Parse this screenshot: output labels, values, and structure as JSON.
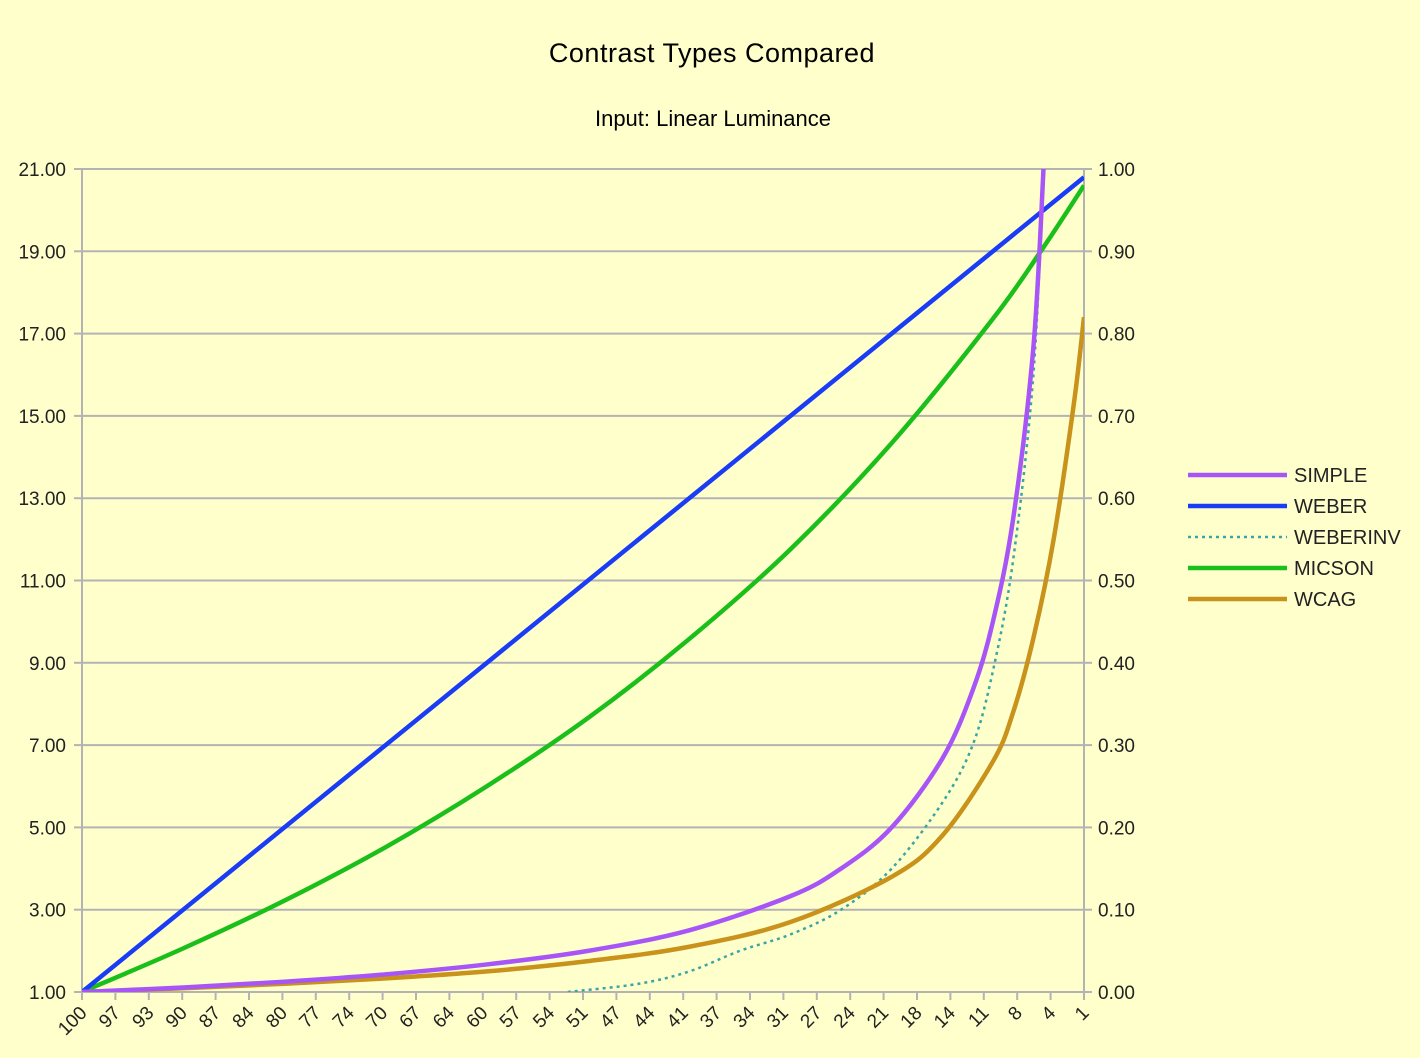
{
  "chart_data": {
    "type": "line",
    "title": "Contrast Types Compared",
    "subtitle": "Input: Linear Luminance",
    "x_tick_labels": [
      "100",
      "97",
      "93",
      "90",
      "87",
      "84",
      "80",
      "77",
      "74",
      "70",
      "67",
      "64",
      "60",
      "57",
      "54",
      "51",
      "47",
      "44",
      "41",
      "37",
      "34",
      "31",
      "27",
      "24",
      "21",
      "18",
      "14",
      "11",
      "8",
      "4",
      "1"
    ],
    "x_range": [
      100,
      1
    ],
    "y_left": {
      "range": [
        1,
        21
      ],
      "ticks": [
        "1.00",
        "3.00",
        "5.00",
        "7.00",
        "9.00",
        "11.00",
        "13.00",
        "15.00",
        "17.00",
        "19.00",
        "21.00"
      ]
    },
    "y_right": {
      "range": [
        0,
        1
      ],
      "ticks": [
        "0.00",
        "0.10",
        "0.20",
        "0.30",
        "0.40",
        "0.50",
        "0.60",
        "0.70",
        "0.80",
        "0.90",
        "1.00"
      ]
    },
    "grid": true,
    "legend_position": "right",
    "series": [
      {
        "name": "SIMPLE",
        "color": "#a855f7",
        "style": "solid",
        "axis": "left",
        "x": [
          100,
          90,
          80,
          70,
          60,
          50,
          40,
          30,
          25,
          20,
          15,
          12,
          10,
          8,
          6,
          5
        ],
        "y": [
          1.0,
          1.11,
          1.25,
          1.43,
          1.67,
          2.0,
          2.5,
          3.33,
          4.0,
          5.0,
          6.67,
          8.33,
          10.0,
          12.5,
          16.67,
          21.0
        ]
      },
      {
        "name": "WEBER",
        "color": "#1a3cf5",
        "style": "solid",
        "axis": "right",
        "x": [
          100,
          1
        ],
        "y": [
          0.0,
          0.99
        ]
      },
      {
        "name": "WEBERINV",
        "color": "#3aa5a5",
        "style": "dotted",
        "axis": "left",
        "x": [
          52,
          45,
          40,
          35,
          30,
          25,
          20,
          15,
          12,
          10,
          8,
          6,
          5
        ],
        "y": [
          1.0,
          1.2,
          1.5,
          2.0,
          2.4,
          3.0,
          4.0,
          5.6,
          7.0,
          8.8,
          11.5,
          16.0,
          21.0
        ]
      },
      {
        "name": "MICSON",
        "color": "#1bbf1b",
        "style": "solid",
        "axis": "right",
        "x": [
          100,
          90,
          80,
          70,
          60,
          50,
          40,
          30,
          20,
          10,
          5,
          1
        ],
        "y": [
          0.0,
          0.053,
          0.111,
          0.176,
          0.25,
          0.333,
          0.429,
          0.538,
          0.667,
          0.818,
          0.905,
          0.98
        ]
      },
      {
        "name": "WCAG",
        "color": "#c8921b",
        "style": "solid",
        "axis": "left",
        "x": [
          100,
          90,
          80,
          70,
          60,
          50,
          40,
          30,
          20,
          15,
          10,
          8,
          6,
          4,
          2,
          1
        ],
        "y": [
          1.0,
          1.09,
          1.2,
          1.33,
          1.5,
          1.75,
          2.1,
          2.7,
          3.8,
          4.8,
          6.6,
          7.8,
          9.6,
          12.0,
          15.3,
          17.4
        ]
      }
    ]
  }
}
